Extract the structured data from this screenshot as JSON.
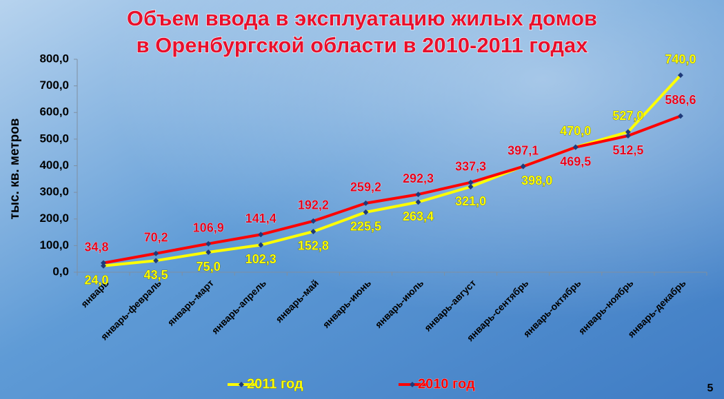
{
  "chart_data": {
    "type": "line",
    "title": [
      "Объем ввода в эксплуатацию жилых домов",
      "в Оренбургской области в 2010-2011 годах"
    ],
    "y_label": "тыс. кв. метров",
    "categories": [
      "январь",
      "январь-февраль",
      "январь-март",
      "январь-апрель",
      "январь-май",
      "январь-июнь",
      "январь-июль",
      "январь-август",
      "январь-сентябрь",
      "январь-октябрь",
      "январь-ноябрь",
      "январь-декабрь"
    ],
    "series": [
      {
        "name": "2011 год",
        "color": "#ffff00",
        "values": [
          24.0,
          43.5,
          75.0,
          102.3,
          152.8,
          225.5,
          263.4,
          321.0,
          398.0,
          470.0,
          527.0,
          740.0
        ],
        "value_labels": [
          "24,0",
          "43,5",
          "75,0",
          "102,3",
          "152,8",
          "225,5",
          "263,4",
          "321,0",
          "398,0",
          "470,0",
          "527,0",
          "740,0"
        ]
      },
      {
        "name": "2010 год",
        "color": "#ff0000",
        "values": [
          34.8,
          70.2,
          106.9,
          141.4,
          192.2,
          259.2,
          292.3,
          337.3,
          397.1,
          469.5,
          512.5,
          586.6
        ],
        "value_labels": [
          "34,8",
          "70,2",
          "106,9",
          "141,4",
          "192,2",
          "259,2",
          "292,3",
          "337,3",
          "397,1",
          "469,5",
          "512,5",
          "586,6"
        ]
      }
    ],
    "ylim": [
      0,
      800
    ],
    "yticks": [
      {
        "value": 0,
        "label": "0,0"
      },
      {
        "value": 100,
        "label": "100,0"
      },
      {
        "value": 200,
        "label": "200,0"
      },
      {
        "value": 300,
        "label": "300,0"
      },
      {
        "value": 400,
        "label": "400,0"
      },
      {
        "value": 500,
        "label": "500,0"
      },
      {
        "value": 600,
        "label": "600,0"
      },
      {
        "value": 700,
        "label": "700,0"
      },
      {
        "value": 800,
        "label": "800,0"
      }
    ],
    "grid": false,
    "legend": "bottom"
  },
  "slide_number": "5"
}
